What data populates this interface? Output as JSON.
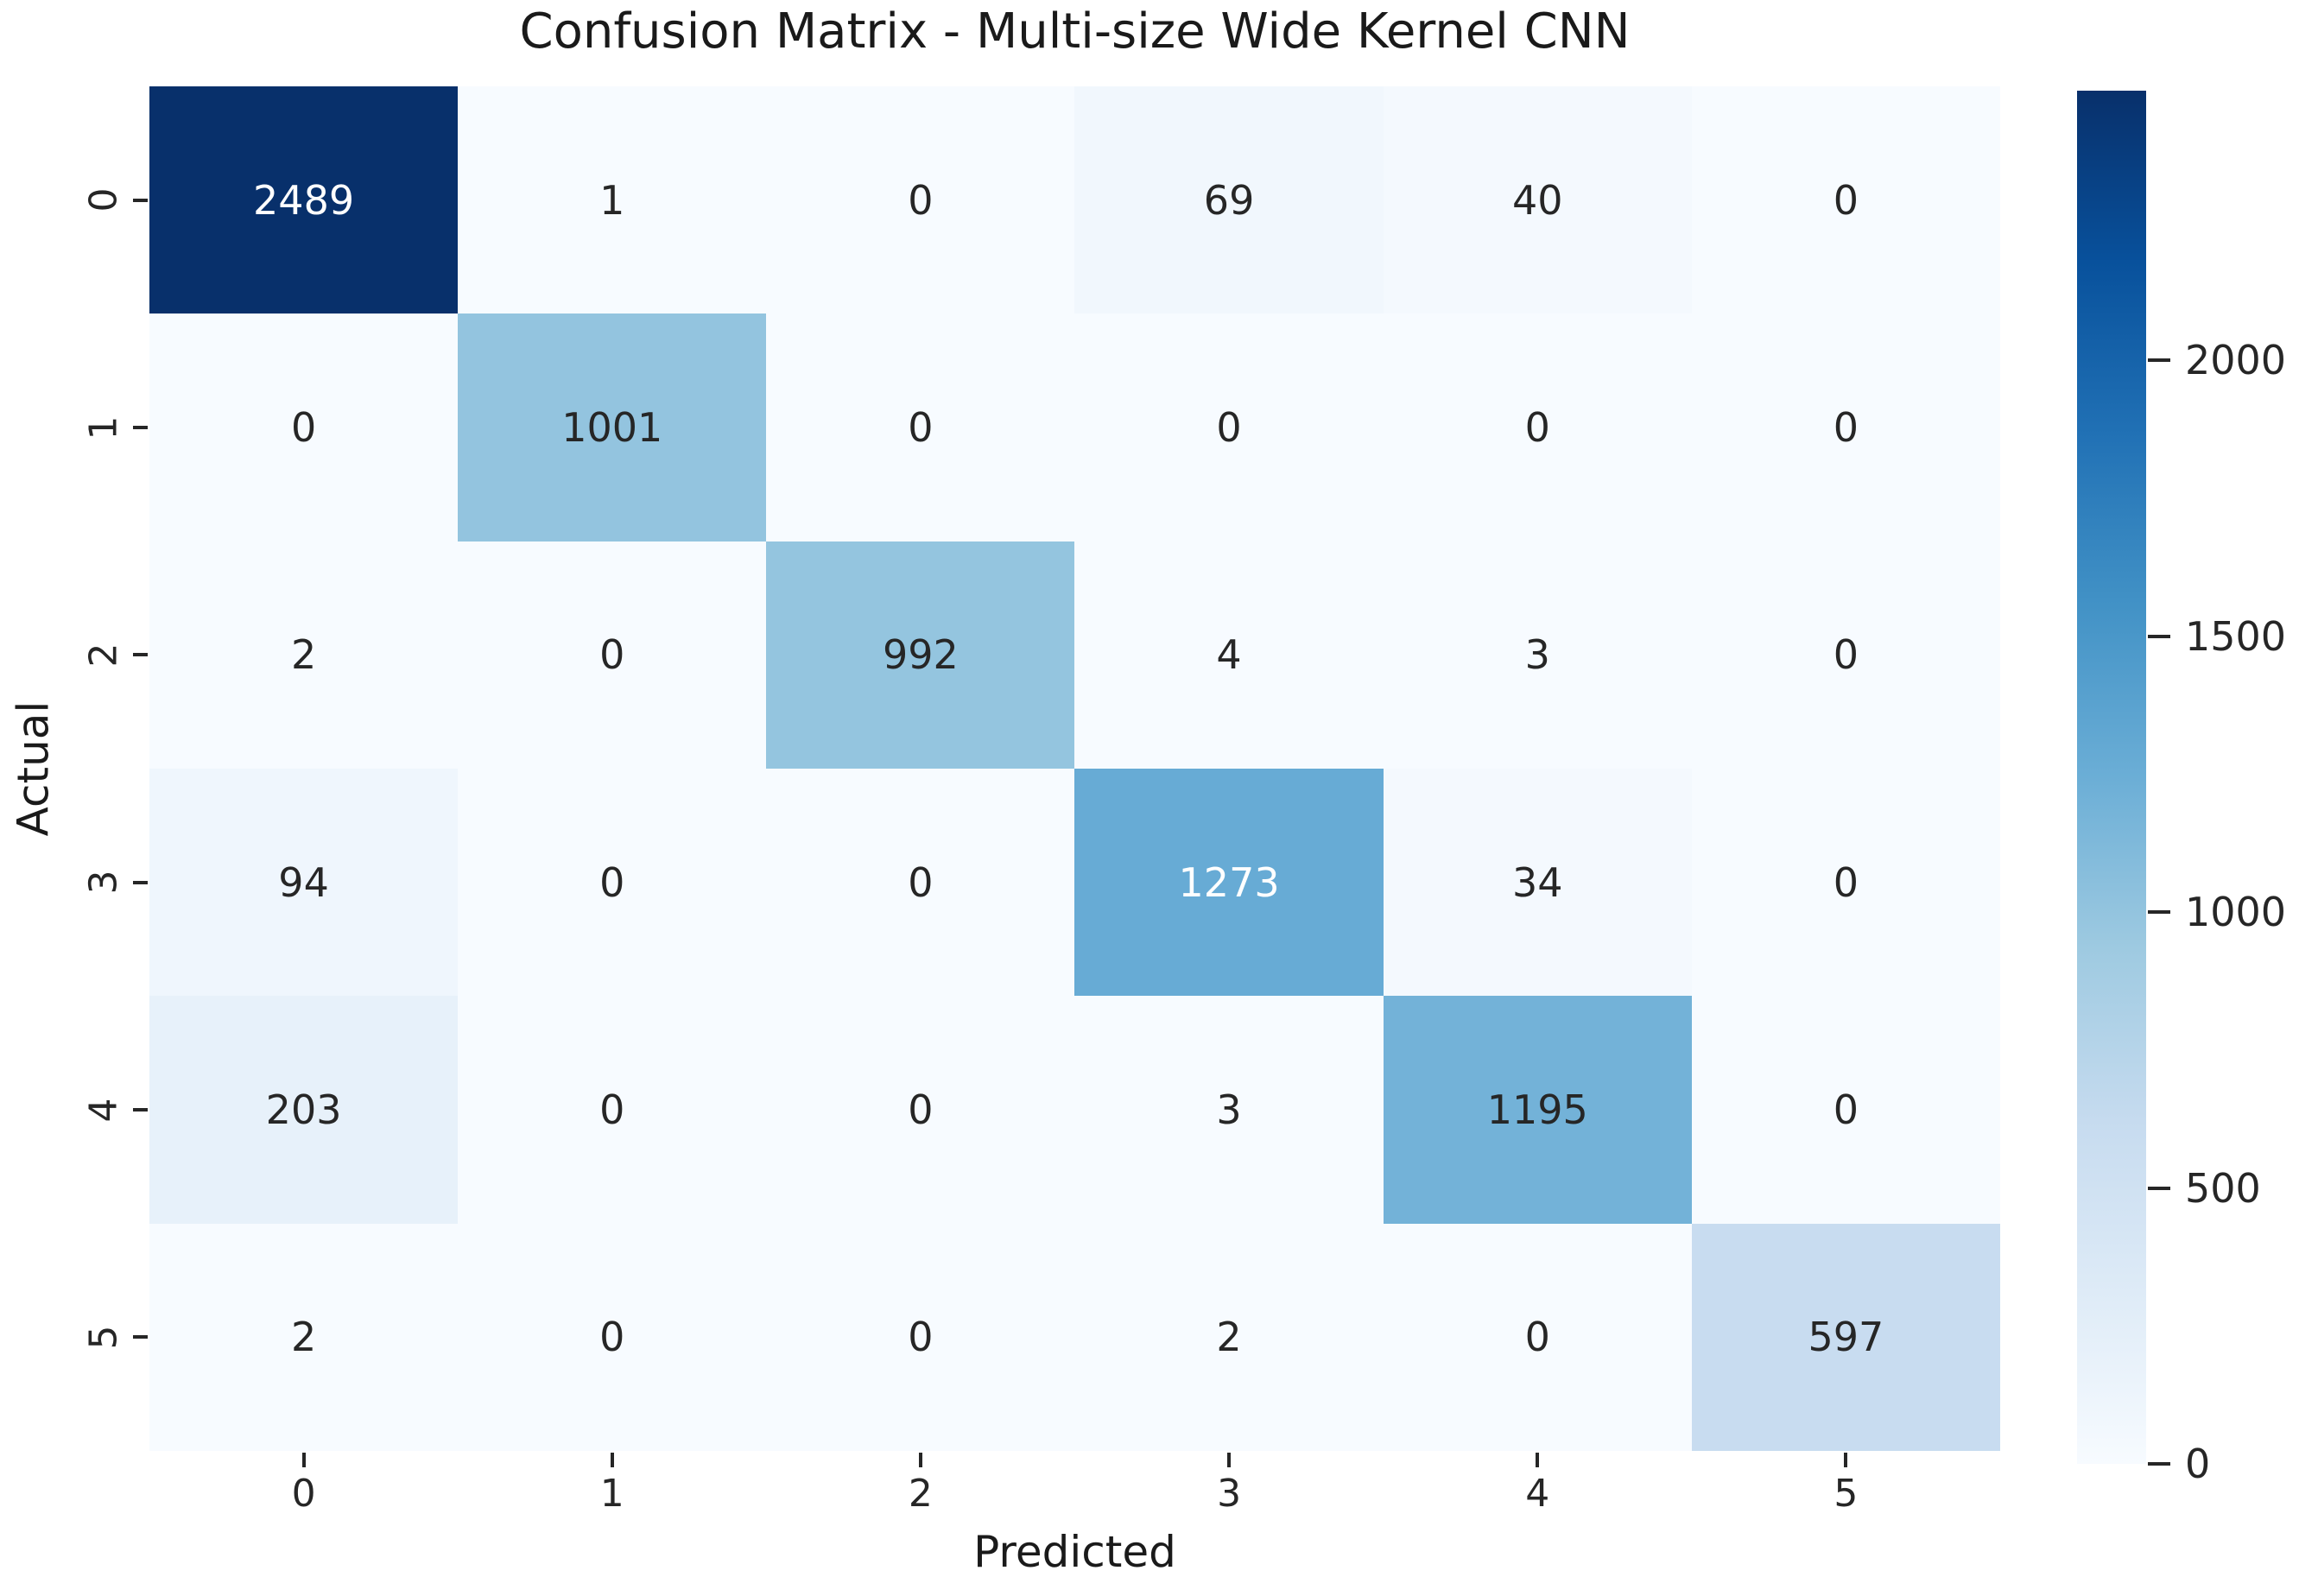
{
  "chart_data": {
    "type": "heatmap",
    "title": "Confusion Matrix - Multi-size Wide Kernel CNN",
    "xlabel": "Predicted",
    "ylabel": "Actual",
    "x_tick_labels": [
      "0",
      "1",
      "2",
      "3",
      "4",
      "5"
    ],
    "y_tick_labels": [
      "0",
      "1",
      "2",
      "3",
      "4",
      "5"
    ],
    "matrix": [
      [
        2489,
        1,
        0,
        69,
        40,
        0
      ],
      [
        0,
        1001,
        0,
        0,
        0,
        0
      ],
      [
        2,
        0,
        992,
        4,
        3,
        0
      ],
      [
        94,
        0,
        0,
        1273,
        34,
        0
      ],
      [
        203,
        0,
        0,
        3,
        1195,
        0
      ],
      [
        2,
        0,
        0,
        2,
        0,
        597
      ]
    ],
    "vmin": 0,
    "vmax": 2489,
    "colormap": "Blues",
    "colormap_low_hex": "#f7fbff",
    "colormap_high_hex": "#08306b",
    "colorbar_ticks": [
      "2000",
      "1500",
      "1000",
      "500",
      "0"
    ],
    "colorbar_position": "right",
    "grid": false,
    "annotation_color_light_cells": "#262626",
    "annotation_color_dark_cells": "#ffffff"
  }
}
